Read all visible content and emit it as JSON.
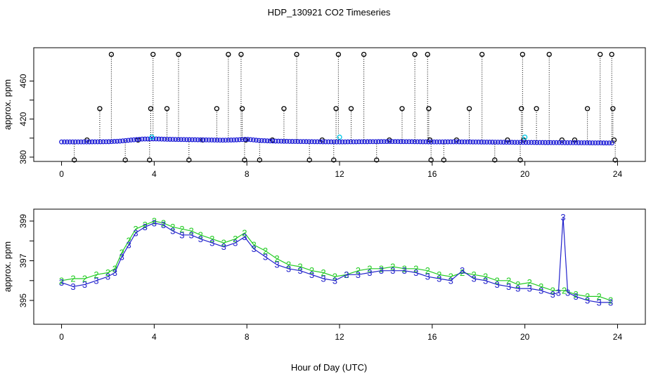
{
  "title": "HDP_130921  CO2 Timeseries",
  "colors": {
    "raw": "#000000",
    "flagged": "#00c8e6",
    "fit": "#1f1fd6",
    "series2": "#22cc22",
    "series3": "#2222cc"
  },
  "chart_data": [
    {
      "type": "scatter",
      "title": "HDP_130921  CO2 Timeseries",
      "xlabel": "",
      "ylabel": "approx. ppm",
      "xlim": [
        -1.2,
        25.2
      ],
      "ylim": [
        375.5,
        495
      ],
      "xticks": [
        0,
        4,
        8,
        12,
        16,
        20,
        24
      ],
      "yticks": [
        380,
        400,
        420,
        440,
        460
      ],
      "ytick_labels": [
        "380",
        "",
        "420",
        "",
        "460"
      ],
      "grid": false,
      "baseline": [
        [
          0,
          396
        ],
        [
          1,
          396
        ],
        [
          2,
          396.2
        ],
        [
          2.5,
          396.8
        ],
        [
          3,
          398
        ],
        [
          3.5,
          399
        ],
        [
          4,
          399.2
        ],
        [
          4.5,
          398.8
        ],
        [
          5,
          398.6
        ],
        [
          6,
          398.2
        ],
        [
          7,
          397.8
        ],
        [
          7.5,
          398.1
        ],
        [
          8,
          398.8
        ],
        [
          8.5,
          397.6
        ],
        [
          9,
          397
        ],
        [
          10,
          396.5
        ],
        [
          11,
          396.2
        ],
        [
          12,
          396
        ],
        [
          13,
          396.2
        ],
        [
          14,
          396.4
        ],
        [
          15,
          396.3
        ],
        [
          16,
          396
        ],
        [
          17,
          396.1
        ],
        [
          18,
          395.9
        ],
        [
          19,
          395.7
        ],
        [
          20,
          395.5
        ],
        [
          21,
          395.3
        ],
        [
          22,
          395.2
        ],
        [
          23,
          395
        ],
        [
          23.8,
          394.9
        ]
      ],
      "flagged_points": [
        [
          3.9,
          401
        ],
        [
          12,
          401
        ],
        [
          20,
          401
        ]
      ],
      "spikes": [
        {
          "x": 0.55,
          "y": 377
        },
        {
          "x": 1.1,
          "y": 398
        },
        {
          "x": 1.65,
          "y": 431
        },
        {
          "x": 2.15,
          "y": 488
        },
        {
          "x": 2.75,
          "y": 377
        },
        {
          "x": 3.3,
          "y": 398
        },
        {
          "x": 3.8,
          "y": 377
        },
        {
          "x": 3.85,
          "y": 431
        },
        {
          "x": 3.95,
          "y": 488
        },
        {
          "x": 4.55,
          "y": 431
        },
        {
          "x": 5.05,
          "y": 488
        },
        {
          "x": 5.5,
          "y": 377
        },
        {
          "x": 6.1,
          "y": 398
        },
        {
          "x": 6.7,
          "y": 431
        },
        {
          "x": 7.2,
          "y": 488
        },
        {
          "x": 7.75,
          "y": 488
        },
        {
          "x": 7.8,
          "y": 431
        },
        {
          "x": 7.9,
          "y": 377
        },
        {
          "x": 7.95,
          "y": 398
        },
        {
          "x": 8.55,
          "y": 377
        },
        {
          "x": 9.1,
          "y": 398
        },
        {
          "x": 9.6,
          "y": 431
        },
        {
          "x": 10.15,
          "y": 488
        },
        {
          "x": 10.7,
          "y": 377
        },
        {
          "x": 11.25,
          "y": 398
        },
        {
          "x": 11.75,
          "y": 377
        },
        {
          "x": 11.85,
          "y": 431
        },
        {
          "x": 11.95,
          "y": 488
        },
        {
          "x": 12.5,
          "y": 431
        },
        {
          "x": 13.05,
          "y": 488
        },
        {
          "x": 13.6,
          "y": 377
        },
        {
          "x": 14.15,
          "y": 398
        },
        {
          "x": 14.7,
          "y": 431
        },
        {
          "x": 15.25,
          "y": 488
        },
        {
          "x": 15.8,
          "y": 488
        },
        {
          "x": 15.85,
          "y": 431
        },
        {
          "x": 15.9,
          "y": 398
        },
        {
          "x": 15.95,
          "y": 377
        },
        {
          "x": 16.5,
          "y": 377
        },
        {
          "x": 17.05,
          "y": 398
        },
        {
          "x": 17.6,
          "y": 431
        },
        {
          "x": 18.15,
          "y": 488
        },
        {
          "x": 18.7,
          "y": 377
        },
        {
          "x": 19.25,
          "y": 398
        },
        {
          "x": 19.8,
          "y": 377
        },
        {
          "x": 19.85,
          "y": 431
        },
        {
          "x": 19.9,
          "y": 488
        },
        {
          "x": 19.95,
          "y": 398
        },
        {
          "x": 20.5,
          "y": 431
        },
        {
          "x": 21.05,
          "y": 488
        },
        {
          "x": 21.6,
          "y": 398
        },
        {
          "x": 22.15,
          "y": 398
        },
        {
          "x": 22.7,
          "y": 431
        },
        {
          "x": 23.25,
          "y": 488
        },
        {
          "x": 23.75,
          "y": 488
        },
        {
          "x": 23.8,
          "y": 431
        },
        {
          "x": 23.85,
          "y": 398
        },
        {
          "x": 23.9,
          "y": 377
        }
      ]
    },
    {
      "type": "line",
      "title": "",
      "xlabel": "Hour of Day (UTC)",
      "ylabel": "approx. ppm",
      "xlim": [
        -1.2,
        25.2
      ],
      "ylim": [
        393.8,
        399.6
      ],
      "xticks": [
        0,
        4,
        8,
        12,
        16,
        20,
        24
      ],
      "yticks": [
        395,
        396,
        397,
        398,
        399
      ],
      "ytick_labels": [
        "395",
        "",
        "397",
        "",
        "399"
      ],
      "grid": false,
      "point_symbol_a": "2",
      "point_symbol_b": "3",
      "series": [
        {
          "name": "2",
          "color": "#22cc22",
          "values": [
            [
              0,
              396.0
            ],
            [
              0.5,
              396.1
            ],
            [
              1,
              396.1
            ],
            [
              1.5,
              396.3
            ],
            [
              2,
              396.4
            ],
            [
              2.3,
              396.6
            ],
            [
              2.6,
              397.4
            ],
            [
              2.9,
              398.0
            ],
            [
              3.2,
              398.6
            ],
            [
              3.6,
              398.8
            ],
            [
              4,
              399.0
            ],
            [
              4.4,
              398.9
            ],
            [
              4.8,
              398.7
            ],
            [
              5.2,
              398.6
            ],
            [
              5.6,
              398.5
            ],
            [
              6,
              398.3
            ],
            [
              6.5,
              398.1
            ],
            [
              7,
              397.9
            ],
            [
              7.5,
              398.1
            ],
            [
              7.9,
              398.4
            ],
            [
              8.3,
              397.8
            ],
            [
              8.8,
              397.5
            ],
            [
              9.3,
              397.1
            ],
            [
              9.8,
              396.8
            ],
            [
              10.3,
              396.7
            ],
            [
              10.8,
              396.5
            ],
            [
              11.3,
              396.4
            ],
            [
              11.8,
              396.2
            ],
            [
              12.3,
              396.3
            ],
            [
              12.8,
              396.5
            ],
            [
              13.3,
              396.6
            ],
            [
              13.8,
              396.6
            ],
            [
              14.3,
              396.7
            ],
            [
              14.8,
              396.6
            ],
            [
              15.3,
              396.6
            ],
            [
              15.8,
              396.5
            ],
            [
              16.3,
              396.3
            ],
            [
              16.8,
              396.2
            ],
            [
              17.3,
              396.4
            ],
            [
              17.8,
              396.3
            ],
            [
              18.3,
              396.2
            ],
            [
              18.8,
              396.0
            ],
            [
              19.3,
              396.0
            ],
            [
              19.7,
              395.8
            ],
            [
              20.2,
              395.9
            ],
            [
              20.7,
              395.7
            ],
            [
              21.2,
              395.5
            ],
            [
              21.7,
              395.5
            ],
            [
              22.2,
              395.3
            ],
            [
              22.7,
              395.2
            ],
            [
              23.2,
              395.2
            ],
            [
              23.7,
              395.0
            ]
          ]
        },
        {
          "name": "3",
          "color": "#2222cc",
          "values": [
            [
              0,
              395.9
            ],
            [
              0.5,
              395.7
            ],
            [
              1,
              395.8
            ],
            [
              1.5,
              396.0
            ],
            [
              2,
              396.2
            ],
            [
              2.3,
              396.4
            ],
            [
              2.6,
              397.2
            ],
            [
              2.9,
              397.8
            ],
            [
              3.2,
              398.4
            ],
            [
              3.6,
              398.7
            ],
            [
              4,
              398.9
            ],
            [
              4.4,
              398.8
            ],
            [
              4.8,
              398.5
            ],
            [
              5.2,
              398.3
            ],
            [
              5.6,
              398.3
            ],
            [
              6,
              398.1
            ],
            [
              6.5,
              397.9
            ],
            [
              7,
              397.7
            ],
            [
              7.5,
              397.9
            ],
            [
              7.9,
              398.2
            ],
            [
              8.3,
              397.6
            ],
            [
              8.8,
              397.2
            ],
            [
              9.3,
              396.8
            ],
            [
              9.8,
              396.6
            ],
            [
              10.3,
              396.5
            ],
            [
              10.8,
              396.3
            ],
            [
              11.3,
              396.1
            ],
            [
              11.8,
              396.0
            ],
            [
              12.3,
              396.3
            ],
            [
              12.8,
              396.3
            ],
            [
              13.3,
              396.4
            ],
            [
              13.8,
              396.5
            ],
            [
              14.3,
              396.5
            ],
            [
              14.8,
              396.5
            ],
            [
              15.3,
              396.4
            ],
            [
              15.8,
              396.2
            ],
            [
              16.3,
              396.1
            ],
            [
              16.8,
              396.0
            ],
            [
              17.3,
              396.5
            ],
            [
              17.8,
              396.1
            ],
            [
              18.3,
              396.0
            ],
            [
              18.8,
              395.8
            ],
            [
              19.3,
              395.7
            ],
            [
              19.7,
              395.6
            ],
            [
              20.2,
              395.6
            ],
            [
              20.7,
              395.5
            ],
            [
              21.2,
              395.3
            ],
            [
              21.45,
              395.4
            ],
            [
              21.65,
              399.2
            ],
            [
              21.85,
              395.4
            ],
            [
              22.2,
              395.2
            ],
            [
              22.7,
              395.0
            ],
            [
              23.2,
              394.9
            ],
            [
              23.7,
              394.9
            ]
          ]
        }
      ]
    }
  ]
}
